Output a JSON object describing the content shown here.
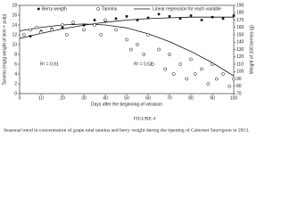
{
  "chart_data": {
    "type": "scatter",
    "xlabel": "Days after the beginning of veraison",
    "ylabel": "Tannins (mg/g weight of skin + pulp)",
    "y2label": "Weight of 100 berries (g)",
    "xlim": [
      0,
      100
    ],
    "xticks": [
      0,
      10,
      20,
      30,
      40,
      50,
      60,
      70,
      80,
      90,
      100
    ],
    "ylim": [
      0,
      18
    ],
    "yticks": [
      0,
      2,
      4,
      6,
      8,
      10,
      12,
      14,
      16,
      18
    ],
    "y2lim": [
      70,
      190
    ],
    "y2ticks": [
      70,
      80,
      90,
      100,
      110,
      120,
      130,
      140,
      150,
      160,
      170,
      180,
      190
    ],
    "series": [
      {
        "name": "Berry weigth",
        "marker": "square",
        "color": "#111",
        "axis": "y2",
        "x": [
          2,
          5,
          10,
          15,
          20,
          25,
          30,
          35,
          40,
          45,
          50,
          55,
          60,
          65,
          70,
          75,
          80,
          85,
          90,
          95,
          100
        ],
        "values": [
          150,
          148,
          155,
          158,
          160,
          165,
          163,
          170,
          168,
          172,
          175,
          170,
          173,
          178,
          175,
          172,
          176,
          170,
          174,
          172,
          176
        ]
      },
      {
        "name": "Tannins",
        "marker": "circle",
        "color": "#111",
        "x": [
          2,
          5,
          8,
          10,
          15,
          20,
          22,
          25,
          30,
          35,
          38,
          40,
          45,
          50,
          52,
          55,
          58,
          60,
          62,
          65,
          68,
          70,
          72,
          75,
          78,
          80,
          82,
          85,
          88,
          90,
          92,
          95,
          98,
          100
        ],
        "values": [
          12,
          13,
          13.5,
          12.5,
          13,
          14,
          12,
          14.5,
          13,
          14,
          12,
          15,
          13,
          11,
          9,
          10,
          8,
          12,
          6,
          9,
          5,
          8,
          4,
          6,
          3,
          7,
          4,
          5,
          2,
          6,
          3,
          4,
          1.5,
          3
        ]
      }
    ],
    "regression": {
      "name": "Linear regression for each variable",
      "color": "#111",
      "lines": [
        {
          "x": [
            0,
            10,
            20,
            30,
            40,
            50,
            60,
            70,
            80,
            90,
            100
          ],
          "values": [
            145,
            152,
            158,
            163,
            167,
            170,
            172,
            173,
            174,
            174,
            174
          ],
          "axis": "y2"
        },
        {
          "x": [
            0,
            10,
            20,
            30,
            40,
            50,
            60,
            70,
            80,
            90,
            100
          ],
          "values": [
            12.8,
            13.5,
            14,
            14.2,
            14,
            13.4,
            12.2,
            10.6,
            8.6,
            6.3,
            3.6
          ]
        }
      ]
    },
    "annotations": [
      "R² = 0.91",
      "R² = 0.52"
    ]
  },
  "caption": {
    "label": "FIGURE 4",
    "text": "Seasonal trend in concentration of grape total tannins and berry weight during the ripening of Cabernet Sauvignon in 2013."
  }
}
